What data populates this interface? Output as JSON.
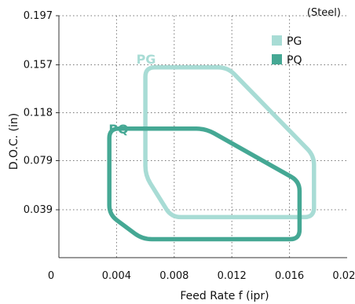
{
  "chart_data": {
    "type": "area",
    "note": "(Steel)",
    "xlabel": "Feed Rate f (ipr)",
    "ylabel": "D.O.C. (in)",
    "xlim": [
      0,
      0.02
    ],
    "ylim": [
      0,
      0.197
    ],
    "x_ticks": [
      {
        "value": 0,
        "label": "0"
      },
      {
        "value": 0.004,
        "label": "0.004"
      },
      {
        "value": 0.008,
        "label": "0.008"
      },
      {
        "value": 0.012,
        "label": "0.012"
      },
      {
        "value": 0.016,
        "label": "0.016"
      },
      {
        "value": 0.02,
        "label": "0.020"
      }
    ],
    "y_ticks": [
      {
        "value": 0.039,
        "label": "0.039"
      },
      {
        "value": 0.079,
        "label": "0.079"
      },
      {
        "value": 0.118,
        "label": "0.118"
      },
      {
        "value": 0.157,
        "label": "0.157"
      },
      {
        "value": 0.197,
        "label": "0.197"
      }
    ],
    "grid": true,
    "legend": "top-right",
    "series": [
      {
        "name": "PG",
        "color": "#a8dcd5",
        "points": [
          [
            0.006,
            0.155
          ],
          [
            0.0117,
            0.155
          ],
          [
            0.0177,
            0.083
          ],
          [
            0.0177,
            0.033
          ],
          [
            0.0078,
            0.033
          ],
          [
            0.006,
            0.067
          ]
        ]
      },
      {
        "name": "PQ",
        "color": "#45a894",
        "points": [
          [
            0.0035,
            0.105
          ],
          [
            0.0102,
            0.105
          ],
          [
            0.0167,
            0.062
          ],
          [
            0.0167,
            0.015
          ],
          [
            0.0058,
            0.015
          ],
          [
            0.0035,
            0.035
          ]
        ]
      }
    ]
  }
}
